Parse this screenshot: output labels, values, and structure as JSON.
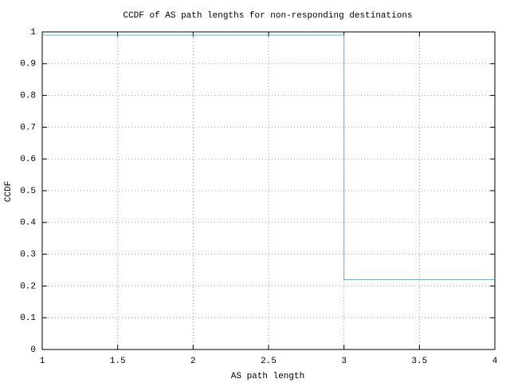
{
  "chart_data": {
    "type": "line",
    "title": "CCDF of AS path lengths for non-responding destinations",
    "xlabel": "AS path length",
    "ylabel": "CCDF",
    "x": [
      1,
      3,
      3,
      4
    ],
    "series": [
      {
        "color": "#55b6cf",
        "values": [
          0.99,
          0.99,
          0.22,
          0.22
        ]
      }
    ],
    "xlim": [
      1,
      4
    ],
    "xticks": [
      1,
      1.5,
      2,
      2.5,
      3,
      3.5,
      4
    ],
    "ylim": [
      0,
      1
    ],
    "yticks": [
      0,
      0.1,
      0.2,
      0.3,
      0.4,
      0.5,
      0.6,
      0.7,
      0.8,
      0.9,
      1
    ],
    "grid": true
  }
}
